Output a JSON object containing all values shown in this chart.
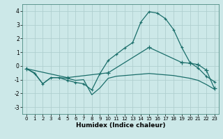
{
  "xlabel": "Humidex (Indice chaleur)",
  "bg_color": "#cce8e8",
  "line_color": "#1a6e6a",
  "grid_color": "#b0cfcf",
  "ylim": [
    -3.5,
    4.5
  ],
  "xlim": [
    -0.5,
    23.5
  ],
  "yticks": [
    -3,
    -2,
    -1,
    0,
    1,
    2,
    3,
    4
  ],
  "xticks": [
    0,
    1,
    2,
    3,
    4,
    5,
    6,
    7,
    8,
    9,
    10,
    11,
    12,
    13,
    14,
    15,
    16,
    17,
    18,
    19,
    20,
    21,
    22,
    23
  ],
  "line1_x": [
    0,
    1,
    2,
    3,
    4,
    5,
    6,
    7,
    8,
    9,
    10,
    11,
    12,
    13,
    14,
    15,
    16,
    17,
    18,
    19,
    20,
    21,
    22,
    23
  ],
  "line1_y": [
    -0.2,
    -0.55,
    -1.3,
    -0.85,
    -0.85,
    -1.05,
    -1.2,
    -1.3,
    -1.75,
    -0.55,
    0.4,
    0.85,
    1.3,
    1.7,
    3.2,
    3.95,
    3.85,
    3.45,
    2.65,
    1.35,
    0.25,
    -0.15,
    -0.75,
    -1.15
  ],
  "line2_x": [
    0,
    1,
    2,
    3,
    4,
    5,
    6,
    7,
    8,
    9,
    10,
    11,
    12,
    13,
    14,
    15,
    16,
    17,
    18,
    19,
    20,
    21,
    22,
    23
  ],
  "line2_y": [
    -0.2,
    -0.5,
    -1.3,
    -0.85,
    -0.85,
    -0.9,
    -1.05,
    -1.0,
    -2.1,
    -1.6,
    -0.9,
    -0.75,
    -0.7,
    -0.65,
    -0.6,
    -0.55,
    -0.6,
    -0.65,
    -0.7,
    -0.8,
    -0.9,
    -1.05,
    -1.35,
    -1.7
  ],
  "line3_x": [
    0,
    5,
    10,
    15,
    19,
    20,
    21,
    22,
    23
  ],
  "line3_y": [
    -0.2,
    -0.85,
    -0.5,
    1.35,
    0.25,
    0.2,
    0.1,
    -0.3,
    -1.65
  ]
}
